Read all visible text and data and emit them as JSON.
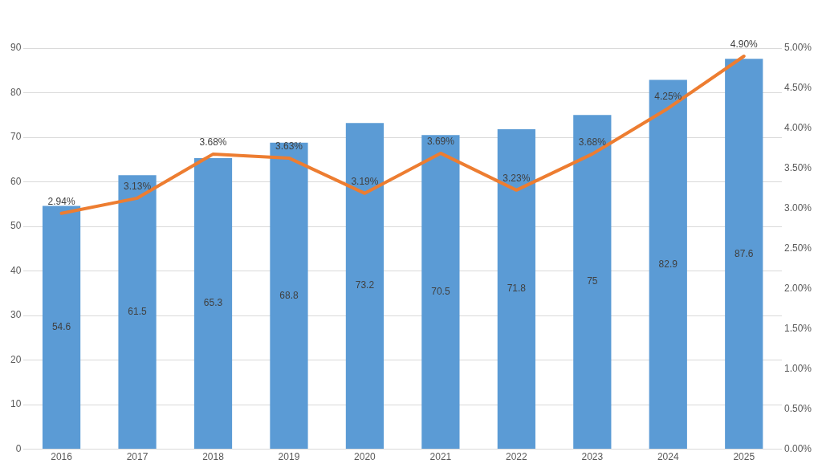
{
  "chart_data": {
    "type": "bar",
    "categories": [
      "2016",
      "2017",
      "2018",
      "2019",
      "2020",
      "2021",
      "2022",
      "2023",
      "2024",
      "2025"
    ],
    "series": [
      {
        "color": "#5b9bd5",
        "values": [
          54.6,
          61.5,
          65.3,
          68.8,
          73.2,
          70.5,
          71.8,
          75,
          82.9,
          87.6
        ],
        "value_labels": [
          "54.6",
          "61.5",
          "65.3",
          "68.8",
          "73.2",
          "70.5",
          "71.8",
          "75",
          "82.9",
          "87.6"
        ]
      },
      {
        "type": "line",
        "axis": "y2",
        "color": "#ed7d31",
        "values": [
          2.94,
          3.13,
          3.68,
          3.63,
          3.19,
          3.69,
          3.23,
          3.68,
          4.25,
          4.9
        ],
        "value_labels": [
          "2.94%",
          "3.13%",
          "3.68%",
          "3.63%",
          "3.19%",
          "3.69%",
          "3.23%",
          "3.68%",
          "4.25%",
          "4.90%"
        ]
      }
    ],
    "ylim": [
      0,
      90
    ],
    "yticks": [
      0,
      10,
      20,
      30,
      40,
      50,
      60,
      70,
      80,
      90
    ],
    "y2lim": [
      0,
      5
    ],
    "y2ticks": [
      {
        "value": 0,
        "label": "0.00%"
      },
      {
        "value": 0.5,
        "label": "0.50%"
      },
      {
        "value": 1,
        "label": "1.00%"
      },
      {
        "value": 1.5,
        "label": "1.50%"
      },
      {
        "value": 2,
        "label": "2.00%"
      },
      {
        "value": 2.5,
        "label": "2.50%"
      },
      {
        "value": 3,
        "label": "3.00%"
      },
      {
        "value": 3.5,
        "label": "3.50%"
      },
      {
        "value": 4,
        "label": "4.00%"
      },
      {
        "value": 4.5,
        "label": "4.50%"
      },
      {
        "value": 5,
        "label": "5.00%"
      }
    ],
    "grid": "y",
    "legend": false,
    "marker": "none",
    "line_style": "solid"
  }
}
